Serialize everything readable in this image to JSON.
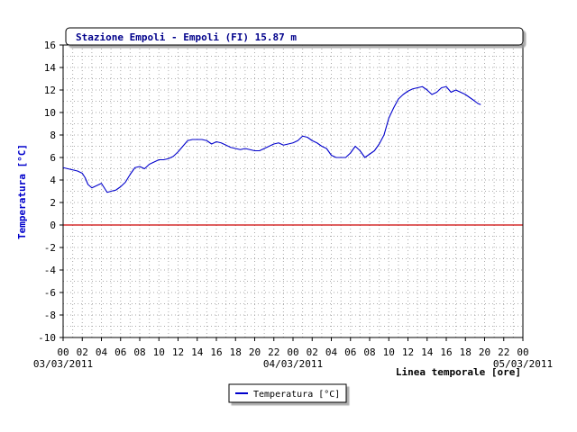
{
  "chart_data": {
    "type": "line",
    "title": "Stazione Empoli - Empoli (FI) 15.87 m",
    "ylabel": "Temperatura [°C]",
    "xlabel": "Linea temporale [ore]",
    "ylim": [
      -10,
      16
    ],
    "yticks": [
      -10,
      -8,
      -6,
      -4,
      -2,
      0,
      2,
      4,
      6,
      8,
      10,
      12,
      14,
      16
    ],
    "xlim": [
      0,
      48
    ],
    "x_tick_labels": [
      "00",
      "02",
      "04",
      "06",
      "08",
      "10",
      "12",
      "14",
      "16",
      "18",
      "20",
      "22",
      "00",
      "02",
      "04",
      "06",
      "08",
      "10",
      "12",
      "14",
      "16",
      "18",
      "20",
      "22",
      "00"
    ],
    "date_labels": [
      {
        "hour": 0,
        "label": "03/03/2011"
      },
      {
        "hour": 24,
        "label": "04/03/2011"
      },
      {
        "hour": 48,
        "label": "05/03/2011"
      }
    ],
    "grid": true,
    "zero_line_color": "#cc0000",
    "legend_position": "bottom-center",
    "series": [
      {
        "name": "Temperatura [°C]",
        "color": "#0000cc",
        "x": [
          0,
          0.5,
          1,
          1.5,
          2,
          2.3,
          2.6,
          3,
          3.5,
          4,
          4.3,
          4.6,
          5,
          5.5,
          6,
          6.5,
          7,
          7.5,
          8,
          8.5,
          9,
          9.5,
          10,
          10.5,
          11,
          11.5,
          12,
          12.5,
          13,
          13.5,
          14,
          14.5,
          15,
          15.5,
          16,
          16.5,
          17,
          17.5,
          18,
          18.5,
          19,
          19.5,
          20,
          20.5,
          21,
          21.5,
          22,
          22.5,
          23,
          23.5,
          24,
          24.5,
          25,
          25.5,
          26,
          26.5,
          27,
          27.5,
          28,
          28.5,
          29,
          29.5,
          30,
          30.5,
          31,
          31.5,
          32,
          32.5,
          33,
          33.5,
          34,
          34.5,
          35,
          35.5,
          36,
          36.5,
          37,
          37.5,
          38,
          38.5,
          39,
          39.5,
          40,
          40.5,
          41,
          41.5,
          42,
          42.5,
          43,
          43.3,
          43.6
        ],
        "y": [
          5.1,
          5.0,
          4.9,
          4.8,
          4.6,
          4.2,
          3.6,
          3.3,
          3.5,
          3.7,
          3.3,
          2.9,
          3.0,
          3.1,
          3.4,
          3.8,
          4.5,
          5.1,
          5.2,
          5.0,
          5.4,
          5.6,
          5.8,
          5.8,
          5.9,
          6.1,
          6.5,
          7.0,
          7.5,
          7.6,
          7.6,
          7.6,
          7.5,
          7.2,
          7.4,
          7.3,
          7.1,
          6.9,
          6.8,
          6.7,
          6.8,
          6.7,
          6.6,
          6.6,
          6.8,
          7.0,
          7.2,
          7.3,
          7.1,
          7.2,
          7.3,
          7.5,
          7.9,
          7.8,
          7.5,
          7.3,
          7.0,
          6.8,
          6.2,
          6.0,
          6.0,
          6.0,
          6.4,
          7.0,
          6.6,
          6.0,
          6.3,
          6.6,
          7.2,
          8.0,
          9.5,
          10.4,
          11.2,
          11.6,
          11.9,
          12.1,
          12.2,
          12.3,
          12.0,
          11.6,
          11.8,
          12.2,
          12.3,
          11.8,
          12.0,
          11.8,
          11.6,
          11.3,
          11.0,
          10.8,
          10.7
        ]
      }
    ]
  }
}
